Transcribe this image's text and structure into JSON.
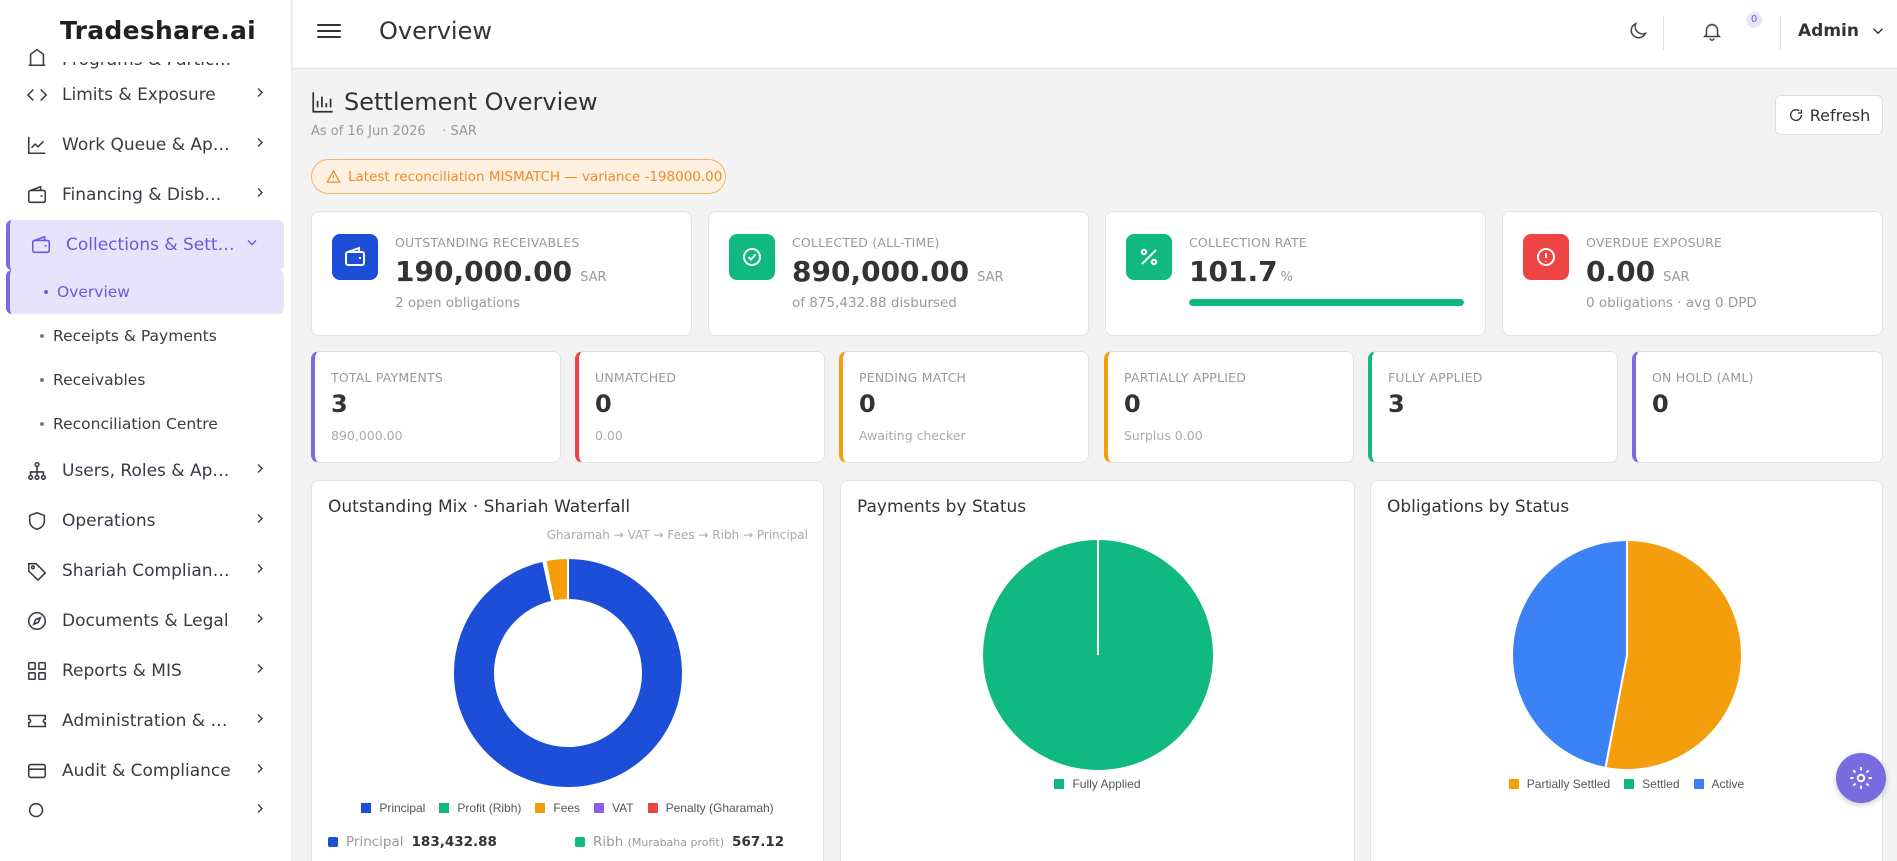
{
  "brand": "Tradeshare.ai",
  "topbar": {
    "title": "Overview",
    "notifications": "0",
    "user": "Admin"
  },
  "sidebar": {
    "partial_item": "Programs & Participants",
    "items": [
      {
        "label": "Limits & Exposure",
        "icon": "code-icon"
      },
      {
        "label": "Work Queue & Approvals",
        "icon": "trend-icon"
      },
      {
        "label": "Financing & Disbursements",
        "icon": "wallet-icon"
      },
      {
        "label": "Collections & Settlements",
        "icon": "wallet-icon",
        "expanded": true
      },
      {
        "label": "Users, Roles & Approvals",
        "icon": "hierarchy-icon"
      },
      {
        "label": "Operations",
        "icon": "shield-icon"
      },
      {
        "label": "Shariah Compliance",
        "icon": "tag-icon"
      },
      {
        "label": "Documents & Legal",
        "icon": "compass-icon"
      },
      {
        "label": "Reports & MIS",
        "icon": "grid-icon"
      },
      {
        "label": "Administration & Settings",
        "icon": "ticket-icon"
      },
      {
        "label": "Audit & Compliance",
        "icon": "card-icon"
      }
    ],
    "sub_items": [
      "Overview",
      "Receipts & Payments",
      "Receivables",
      "Reconciliation Centre"
    ]
  },
  "page": {
    "title": "Settlement Overview",
    "as_of": "As of 16 Jun 2026",
    "currency": "· SAR",
    "refresh_label": "Refresh",
    "alert": "Latest reconciliation MISMATCH — variance -198000.00"
  },
  "kpis": [
    {
      "label": "OUTSTANDING RECEIVABLES",
      "value": "190,000.00",
      "unit": "SAR",
      "sub": "2 open obligations",
      "color": "#1d4ed8",
      "icon": "wallet-icon"
    },
    {
      "label": "COLLECTED (ALL-TIME)",
      "value": "890,000.00",
      "unit": "SAR",
      "sub": "of 875,432.88 disbursed",
      "color": "#10b981",
      "icon": "check-circle-icon"
    },
    {
      "label": "COLLECTION RATE",
      "value": "101.7",
      "unit": "%",
      "progress": 1.0,
      "color": "#10b981",
      "icon": "percent-icon"
    },
    {
      "label": "OVERDUE EXPOSURE",
      "value": "0.00",
      "unit": "SAR",
      "sub": "0 obligations · avg 0 DPD",
      "color": "#ef4444",
      "icon": "alert-circle-icon"
    }
  ],
  "stats": [
    {
      "label": "TOTAL PAYMENTS",
      "value": "3",
      "sub": "890,000.00",
      "color": "#7b6be0"
    },
    {
      "label": "UNMATCHED",
      "value": "0",
      "sub": "0.00",
      "color": "#ef4444"
    },
    {
      "label": "PENDING MATCH",
      "value": "0",
      "sub": "Awaiting checker",
      "color": "#f59e0b"
    },
    {
      "label": "PARTIALLY APPLIED",
      "value": "0",
      "sub": "Surplus 0.00",
      "color": "#f59e0b"
    },
    {
      "label": "FULLY APPLIED",
      "value": "3",
      "sub": "",
      "color": "#10b981"
    },
    {
      "label": "ON HOLD (AML)",
      "value": "0",
      "sub": "",
      "color": "#7b6be0"
    }
  ],
  "cards": {
    "mix_title": "Outstanding Mix · Shariah Waterfall",
    "waterfall_note": "Gharamah → VAT → Fees → Ribh → Principal",
    "payments_title": "Payments by Status",
    "obligations_title": "Obligations by Status",
    "mix_rows": [
      {
        "label": "Principal",
        "note": "",
        "value": "183,432.88",
        "color": "#1d4ed8"
      },
      {
        "label": "Ribh",
        "note": "(Murabaha profit)",
        "value": "567.12",
        "color": "#10b981"
      }
    ]
  },
  "chart_data": [
    {
      "type": "pie",
      "variant": "donut",
      "title": "Outstanding Mix · Shariah Waterfall",
      "categories": [
        "Principal",
        "Profit (Ribh)",
        "Fees",
        "VAT",
        "Penalty (Gharamah)"
      ],
      "values": [
        183432.88,
        567.12,
        6000,
        0,
        0
      ],
      "colors": [
        "#1d4ed8",
        "#10b981",
        "#f59e0b",
        "#8b5cf6",
        "#ef4444"
      ],
      "legend": "bottom"
    },
    {
      "type": "pie",
      "title": "Payments by Status",
      "categories": [
        "Fully Applied"
      ],
      "values": [
        3
      ],
      "colors": [
        "#10b981"
      ],
      "legend": "bottom"
    },
    {
      "type": "pie",
      "title": "Obligations by Status",
      "categories": [
        "Partially Settled",
        "Settled",
        "Active"
      ],
      "values": [
        53,
        0,
        47
      ],
      "colors": [
        "#f59e0b",
        "#10b981",
        "#3b82f6"
      ],
      "legend": "bottom"
    }
  ]
}
